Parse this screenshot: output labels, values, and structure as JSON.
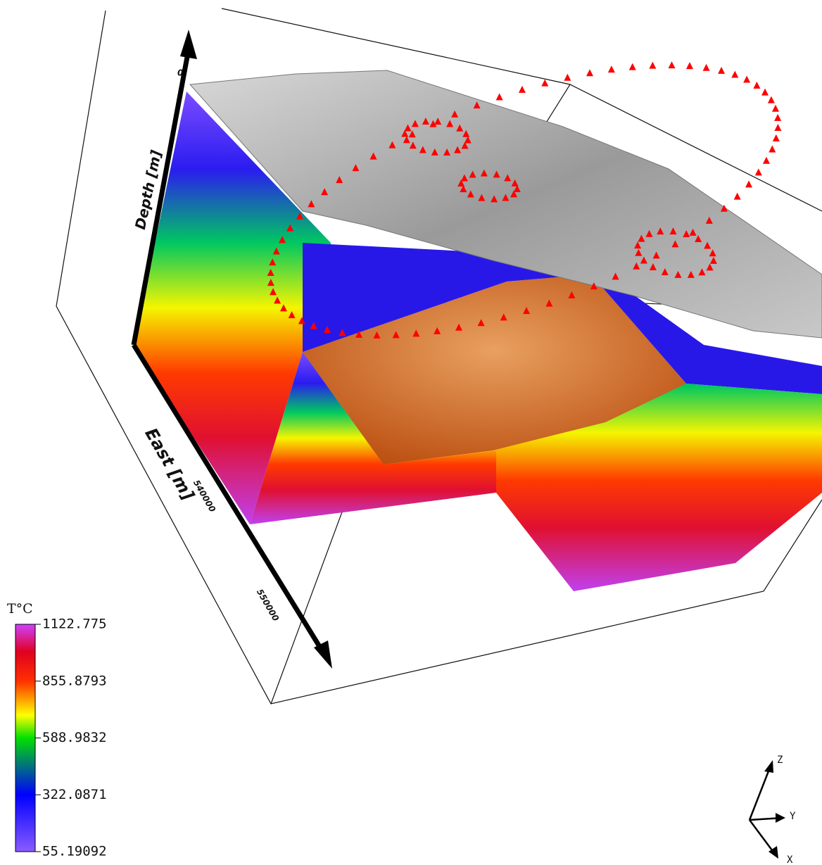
{
  "colorbar": {
    "title": "T°C",
    "labels": [
      "1122.775",
      "855.8793",
      "588.9832",
      "322.0871",
      "55.19092"
    ]
  },
  "axes": {
    "depth_label": "Depth [m]",
    "depth_tick": "0",
    "east_label": "East [m]",
    "east_ticks": [
      "540000",
      "550000"
    ]
  },
  "triad": {
    "z": "Z",
    "y": "Y",
    "x": "X"
  }
}
